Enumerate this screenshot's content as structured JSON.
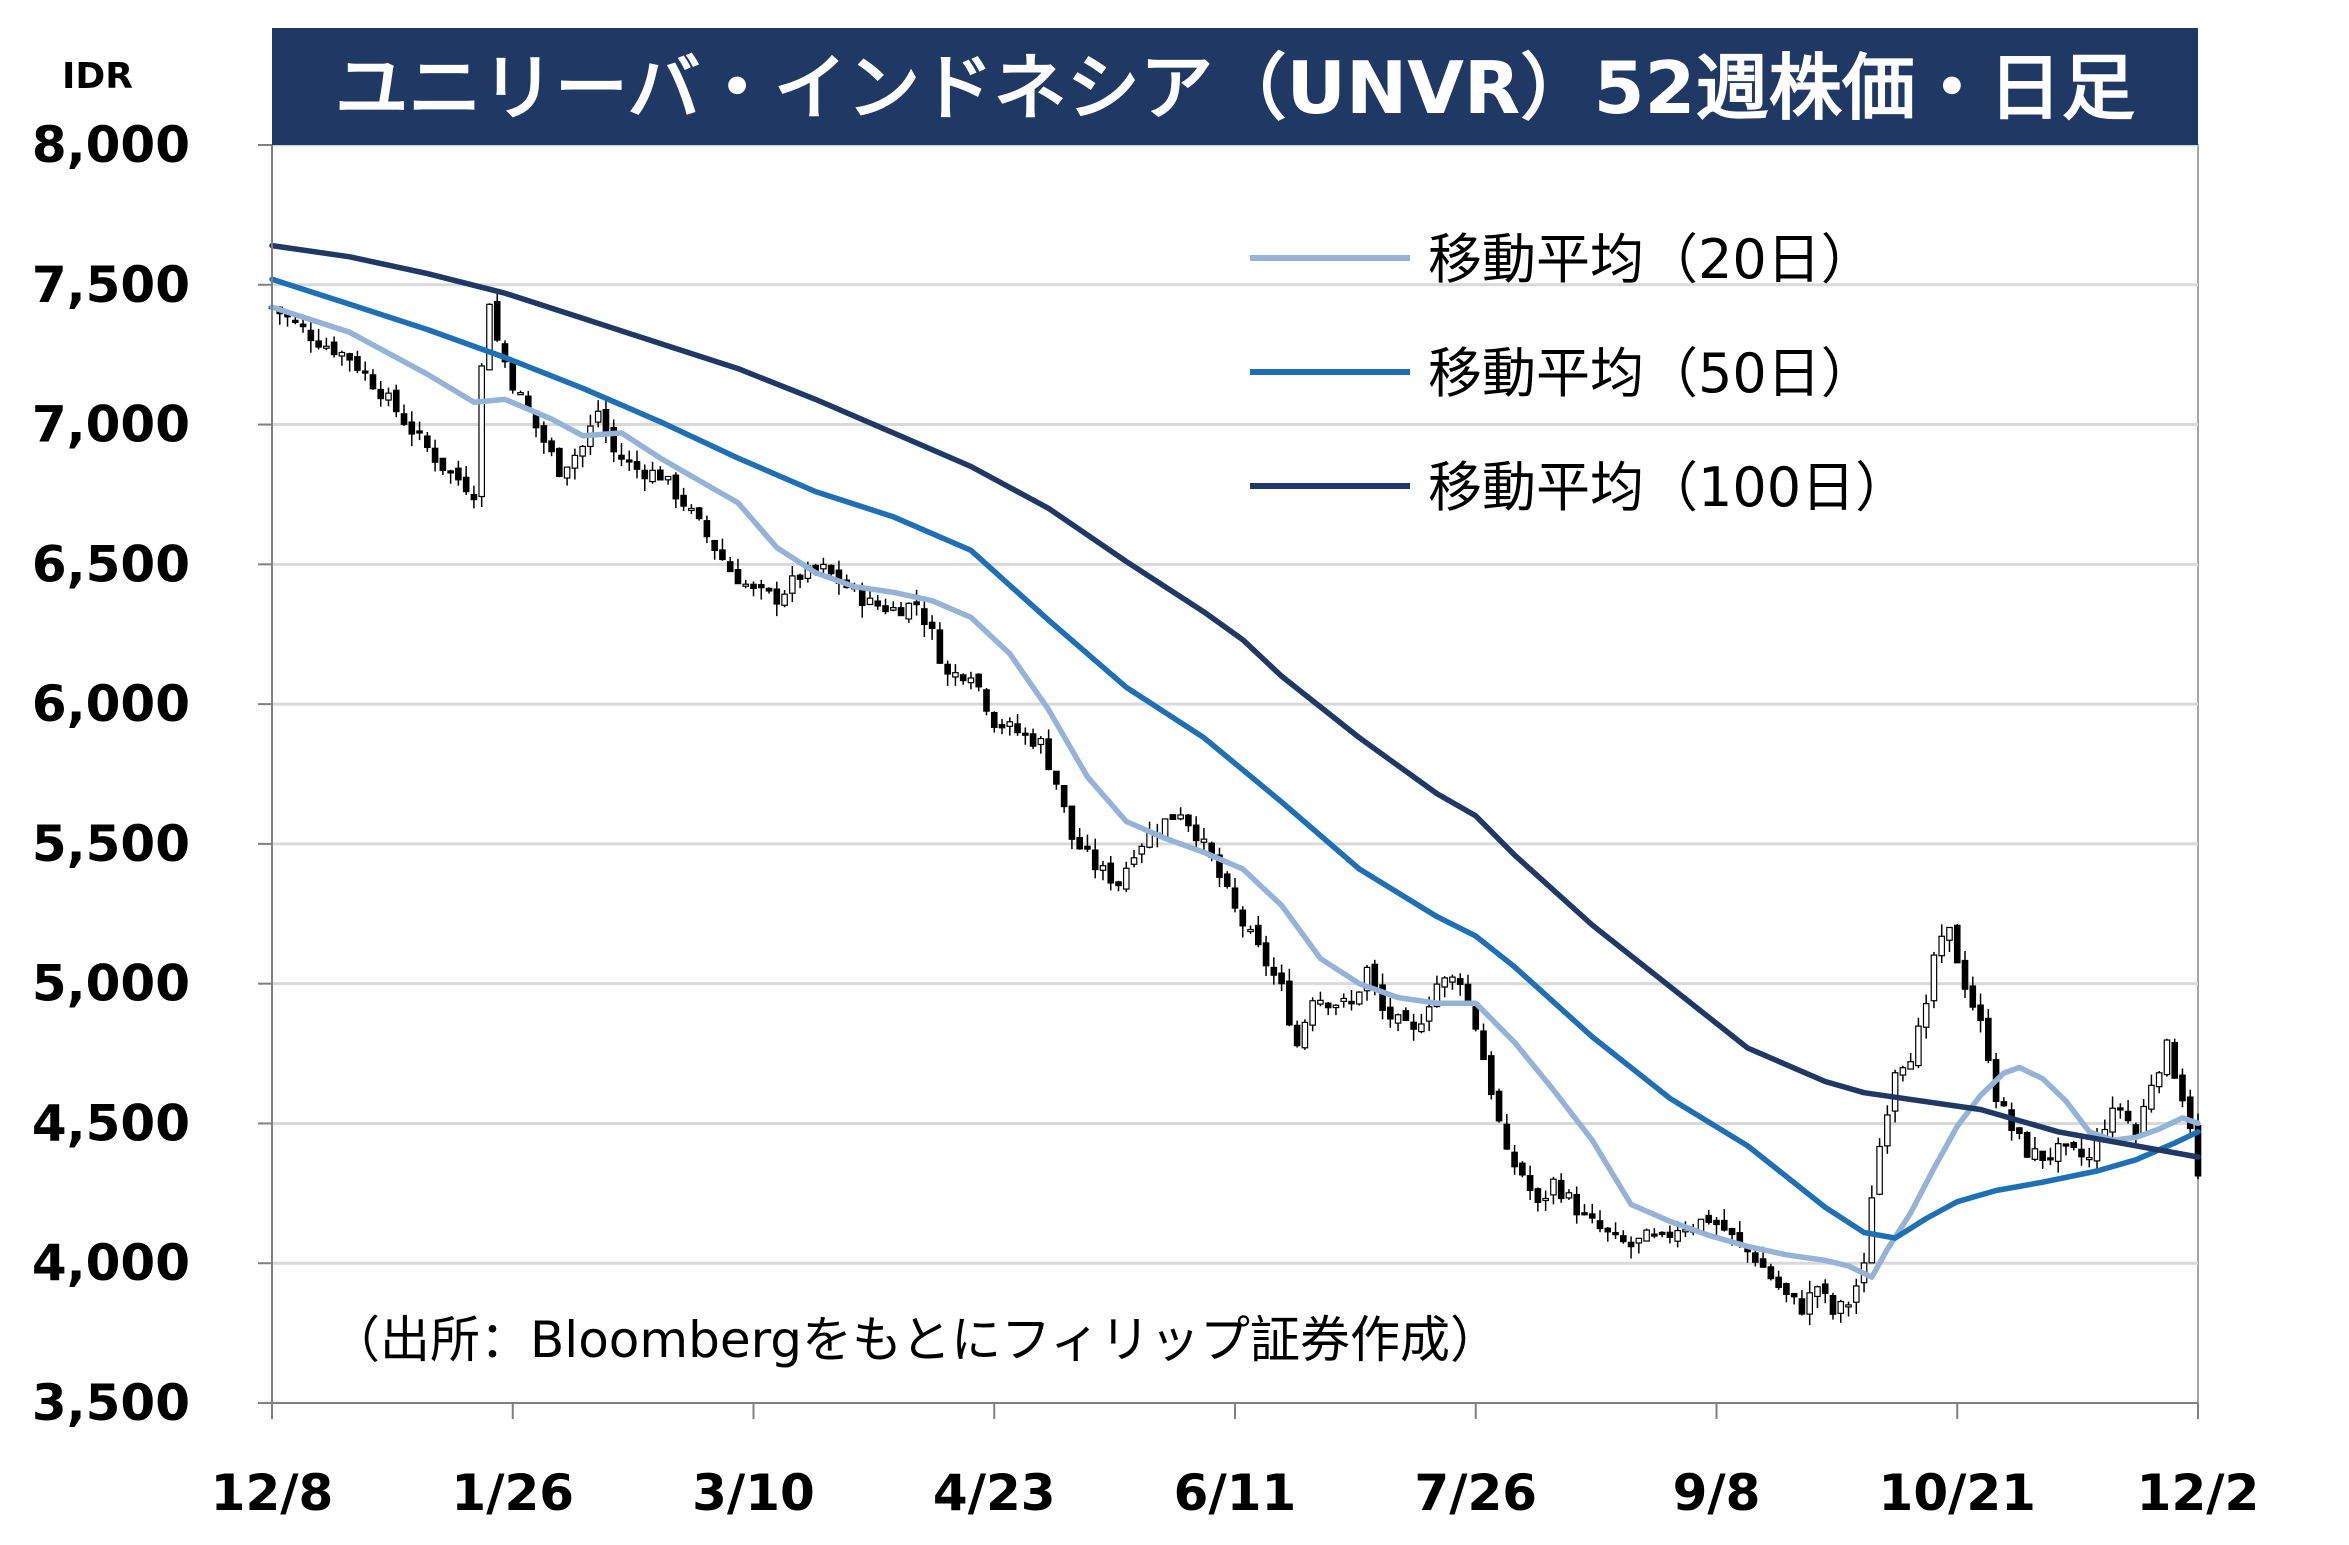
{
  "chart_data": {
    "type": "candlestick",
    "title": "ユニリーバ・インドネシア（UNVR）52週株価・日足",
    "ylabel": "IDR",
    "source_note": "（出所：Bloombergをもとにフィリップ証券作成）",
    "ylim": [
      3500,
      8000
    ],
    "y_ticks": [
      {
        "value": 3500,
        "label": "3,500"
      },
      {
        "value": 4000,
        "label": "4,000"
      },
      {
        "value": 4500,
        "label": "4,500"
      },
      {
        "value": 5000,
        "label": "5,000"
      },
      {
        "value": 5500,
        "label": "5,500"
      },
      {
        "value": 6000,
        "label": "6,000"
      },
      {
        "value": 6500,
        "label": "6,500"
      },
      {
        "value": 7000,
        "label": "7,000"
      },
      {
        "value": 7500,
        "label": "7,500"
      },
      {
        "value": 8000,
        "label": "8,000"
      }
    ],
    "x_ticks": [
      {
        "index": 0,
        "label": "12/8"
      },
      {
        "index": 31,
        "label": "1/26"
      },
      {
        "index": 62,
        "label": "3/10"
      },
      {
        "index": 93,
        "label": "4/23"
      },
      {
        "index": 124,
        "label": "6/11"
      },
      {
        "index": 155,
        "label": "7/26"
      },
      {
        "index": 186,
        "label": "9/8"
      },
      {
        "index": 217,
        "label": "10/21"
      },
      {
        "index": 248,
        "label": "12/2"
      }
    ],
    "x_count": 249,
    "price_anchors": [
      [
        0,
        7420
      ],
      [
        6,
        7300
      ],
      [
        10,
        7240
      ],
      [
        14,
        7120
      ],
      [
        18,
        6980
      ],
      [
        22,
        6850
      ],
      [
        26,
        6760
      ],
      [
        27,
        7200
      ],
      [
        28,
        7450
      ],
      [
        29,
        7300
      ],
      [
        31,
        7150
      ],
      [
        34,
        6990
      ],
      [
        37,
        6840
      ],
      [
        40,
        6920
      ],
      [
        42,
        7050
      ],
      [
        44,
        6900
      ],
      [
        47,
        6840
      ],
      [
        50,
        6820
      ],
      [
        53,
        6720
      ],
      [
        56,
        6600
      ],
      [
        59,
        6480
      ],
      [
        62,
        6400
      ],
      [
        65,
        6380
      ],
      [
        68,
        6460
      ],
      [
        71,
        6480
      ],
      [
        74,
        6420
      ],
      [
        77,
        6360
      ],
      [
        80,
        6340
      ],
      [
        83,
        6360
      ],
      [
        85,
        6250
      ],
      [
        87,
        6100
      ],
      [
        90,
        6120
      ],
      [
        93,
        5940
      ],
      [
        96,
        5900
      ],
      [
        99,
        5860
      ],
      [
        101,
        5720
      ],
      [
        103,
        5520
      ],
      [
        106,
        5420
      ],
      [
        109,
        5360
      ],
      [
        111,
        5480
      ],
      [
        114,
        5560
      ],
      [
        117,
        5620
      ],
      [
        119,
        5540
      ],
      [
        121,
        5440
      ],
      [
        124,
        5260
      ],
      [
        127,
        5120
      ],
      [
        130,
        4980
      ],
      [
        132,
        4780
      ],
      [
        134,
        4960
      ],
      [
        136,
        4940
      ],
      [
        139,
        4920
      ],
      [
        141,
        5050
      ],
      [
        143,
        4900
      ],
      [
        145,
        4860
      ],
      [
        147,
        4820
      ],
      [
        150,
        5000
      ],
      [
        153,
        5020
      ],
      [
        155,
        4850
      ],
      [
        157,
        4620
      ],
      [
        159,
        4380
      ],
      [
        161,
        4320
      ],
      [
        163,
        4200
      ],
      [
        165,
        4290
      ],
      [
        167,
        4230
      ],
      [
        169,
        4160
      ],
      [
        171,
        4120
      ],
      [
        173,
        4080
      ],
      [
        175,
        4060
      ],
      [
        177,
        4090
      ],
      [
        179,
        4080
      ],
      [
        181,
        4130
      ],
      [
        183,
        4140
      ],
      [
        185,
        4160
      ],
      [
        187,
        4120
      ],
      [
        189,
        4060
      ],
      [
        191,
        4020
      ],
      [
        193,
        3950
      ],
      [
        195,
        3880
      ],
      [
        197,
        3840
      ],
      [
        199,
        3920
      ],
      [
        201,
        3820
      ],
      [
        203,
        3860
      ],
      [
        205,
        3980
      ],
      [
        206,
        4250
      ],
      [
        207,
        4420
      ],
      [
        209,
        4700
      ],
      [
        211,
        4750
      ],
      [
        213,
        4900
      ],
      [
        214,
        5100
      ],
      [
        216,
        5180
      ],
      [
        218,
        5000
      ],
      [
        220,
        4850
      ],
      [
        221,
        4750
      ],
      [
        222,
        4600
      ],
      [
        224,
        4480
      ],
      [
        226,
        4400
      ],
      [
        228,
        4380
      ],
      [
        230,
        4400
      ],
      [
        232,
        4390
      ],
      [
        234,
        4370
      ],
      [
        236,
        4500
      ],
      [
        238,
        4560
      ],
      [
        240,
        4460
      ],
      [
        242,
        4650
      ],
      [
        244,
        4770
      ],
      [
        246,
        4600
      ],
      [
        247,
        4500
      ],
      [
        248,
        4300
      ]
    ],
    "series": [
      {
        "name": "移動平均（20日）",
        "color": "#95b3d7",
        "points": [
          [
            0,
            7420
          ],
          [
            10,
            7330
          ],
          [
            20,
            7180
          ],
          [
            26,
            7080
          ],
          [
            30,
            7090
          ],
          [
            36,
            7020
          ],
          [
            40,
            6960
          ],
          [
            45,
            6970
          ],
          [
            50,
            6880
          ],
          [
            55,
            6800
          ],
          [
            60,
            6720
          ],
          [
            65,
            6560
          ],
          [
            70,
            6470
          ],
          [
            75,
            6420
          ],
          [
            80,
            6400
          ],
          [
            85,
            6370
          ],
          [
            90,
            6310
          ],
          [
            95,
            6180
          ],
          [
            100,
            5980
          ],
          [
            105,
            5740
          ],
          [
            110,
            5580
          ],
          [
            115,
            5520
          ],
          [
            120,
            5470
          ],
          [
            125,
            5410
          ],
          [
            130,
            5280
          ],
          [
            135,
            5090
          ],
          [
            140,
            5000
          ],
          [
            145,
            4950
          ],
          [
            150,
            4930
          ],
          [
            155,
            4930
          ],
          [
            160,
            4790
          ],
          [
            165,
            4620
          ],
          [
            170,
            4440
          ],
          [
            175,
            4210
          ],
          [
            180,
            4150
          ],
          [
            185,
            4100
          ],
          [
            190,
            4060
          ],
          [
            195,
            4030
          ],
          [
            200,
            4010
          ],
          [
            203,
            3990
          ],
          [
            206,
            3950
          ],
          [
            208,
            4050
          ],
          [
            211,
            4180
          ],
          [
            214,
            4340
          ],
          [
            217,
            4490
          ],
          [
            220,
            4600
          ],
          [
            223,
            4680
          ],
          [
            225,
            4700
          ],
          [
            228,
            4660
          ],
          [
            231,
            4580
          ],
          [
            234,
            4470
          ],
          [
            237,
            4440
          ],
          [
            240,
            4450
          ],
          [
            243,
            4480
          ],
          [
            246,
            4520
          ],
          [
            248,
            4500
          ]
        ]
      },
      {
        "name": "移動平均（50日）",
        "color": "#1f6fb5",
        "points": [
          [
            0,
            7520
          ],
          [
            10,
            7430
          ],
          [
            20,
            7340
          ],
          [
            30,
            7240
          ],
          [
            40,
            7130
          ],
          [
            50,
            7010
          ],
          [
            60,
            6880
          ],
          [
            70,
            6760
          ],
          [
            80,
            6670
          ],
          [
            90,
            6550
          ],
          [
            100,
            6300
          ],
          [
            110,
            6060
          ],
          [
            120,
            5880
          ],
          [
            130,
            5650
          ],
          [
            140,
            5410
          ],
          [
            150,
            5240
          ],
          [
            155,
            5170
          ],
          [
            160,
            5060
          ],
          [
            170,
            4810
          ],
          [
            180,
            4590
          ],
          [
            190,
            4420
          ],
          [
            200,
            4200
          ],
          [
            205,
            4110
          ],
          [
            209,
            4090
          ],
          [
            213,
            4160
          ],
          [
            217,
            4220
          ],
          [
            222,
            4260
          ],
          [
            228,
            4290
          ],
          [
            235,
            4330
          ],
          [
            240,
            4370
          ],
          [
            245,
            4430
          ],
          [
            248,
            4470
          ]
        ]
      },
      {
        "name": "移動平均（100日）",
        "color": "#1f3864",
        "points": [
          [
            0,
            7640
          ],
          [
            10,
            7600
          ],
          [
            20,
            7540
          ],
          [
            30,
            7470
          ],
          [
            40,
            7380
          ],
          [
            50,
            7290
          ],
          [
            60,
            7200
          ],
          [
            70,
            7090
          ],
          [
            80,
            6970
          ],
          [
            90,
            6850
          ],
          [
            100,
            6700
          ],
          [
            110,
            6510
          ],
          [
            120,
            6330
          ],
          [
            125,
            6230
          ],
          [
            130,
            6100
          ],
          [
            140,
            5880
          ],
          [
            150,
            5680
          ],
          [
            155,
            5600
          ],
          [
            160,
            5460
          ],
          [
            170,
            5210
          ],
          [
            180,
            4990
          ],
          [
            190,
            4770
          ],
          [
            200,
            4650
          ],
          [
            205,
            4610
          ],
          [
            210,
            4590
          ],
          [
            220,
            4550
          ],
          [
            230,
            4470
          ],
          [
            240,
            4420
          ],
          [
            248,
            4380
          ]
        ]
      }
    ],
    "legend_placement": "top-right",
    "grid": true
  }
}
